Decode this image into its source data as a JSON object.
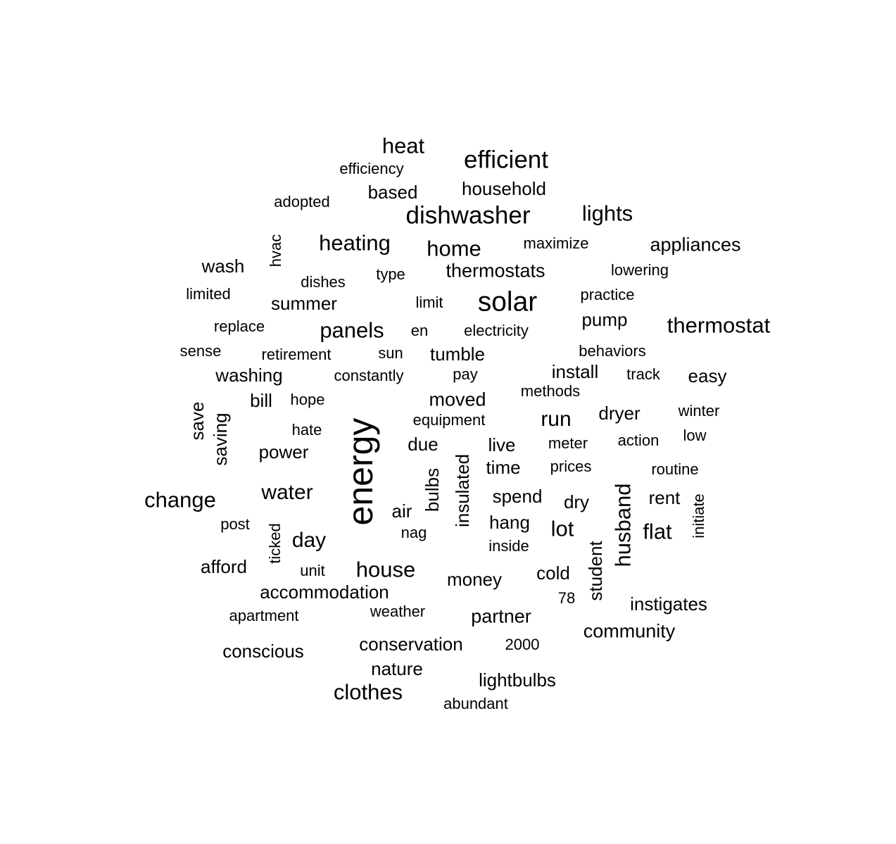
{
  "word_cloud": {
    "text_color": "#000000",
    "background": "#ffffff",
    "words": [
      {
        "text": "heat",
        "v": false
      },
      {
        "text": "efficient",
        "v": false
      },
      {
        "text": "efficiency",
        "v": false
      },
      {
        "text": "based",
        "v": false
      },
      {
        "text": "household",
        "v": false
      },
      {
        "text": "adopted",
        "v": false
      },
      {
        "text": "dishwasher",
        "v": false
      },
      {
        "text": "lights",
        "v": false
      },
      {
        "text": "hvac",
        "v": true
      },
      {
        "text": "heating",
        "v": false
      },
      {
        "text": "home",
        "v": false
      },
      {
        "text": "maximize",
        "v": false
      },
      {
        "text": "appliances",
        "v": false
      },
      {
        "text": "wash",
        "v": false
      },
      {
        "text": "type",
        "v": false
      },
      {
        "text": "thermostats",
        "v": false
      },
      {
        "text": "lowering",
        "v": false
      },
      {
        "text": "dishes",
        "v": false
      },
      {
        "text": "limited",
        "v": false
      },
      {
        "text": "summer",
        "v": false
      },
      {
        "text": "limit",
        "v": false
      },
      {
        "text": "solar",
        "v": false
      },
      {
        "text": "practice",
        "v": false
      },
      {
        "text": "replace",
        "v": false
      },
      {
        "text": "panels",
        "v": false
      },
      {
        "text": "en",
        "v": false
      },
      {
        "text": "electricity",
        "v": false
      },
      {
        "text": "pump",
        "v": false
      },
      {
        "text": "thermostat",
        "v": false
      },
      {
        "text": "sense",
        "v": false
      },
      {
        "text": "retirement",
        "v": false
      },
      {
        "text": "sun",
        "v": false
      },
      {
        "text": "tumble",
        "v": false
      },
      {
        "text": "behaviors",
        "v": false
      },
      {
        "text": "washing",
        "v": false
      },
      {
        "text": "constantly",
        "v": false
      },
      {
        "text": "pay",
        "v": false
      },
      {
        "text": "install",
        "v": false
      },
      {
        "text": "track",
        "v": false
      },
      {
        "text": "easy",
        "v": false
      },
      {
        "text": "methods",
        "v": false
      },
      {
        "text": "bill",
        "v": false
      },
      {
        "text": "hope",
        "v": false
      },
      {
        "text": "moved",
        "v": false
      },
      {
        "text": "save",
        "v": true
      },
      {
        "text": "saving",
        "v": true
      },
      {
        "text": "equipment",
        "v": false
      },
      {
        "text": "run",
        "v": false
      },
      {
        "text": "dryer",
        "v": false
      },
      {
        "text": "winter",
        "v": false
      },
      {
        "text": "hate",
        "v": false
      },
      {
        "text": "energy",
        "v": true
      },
      {
        "text": "due",
        "v": false
      },
      {
        "text": "live",
        "v": false
      },
      {
        "text": "meter",
        "v": false
      },
      {
        "text": "action",
        "v": false
      },
      {
        "text": "low",
        "v": false
      },
      {
        "text": "power",
        "v": false
      },
      {
        "text": "insulated",
        "v": true
      },
      {
        "text": "time",
        "v": false
      },
      {
        "text": "prices",
        "v": false
      },
      {
        "text": "routine",
        "v": false
      },
      {
        "text": "bulbs",
        "v": true
      },
      {
        "text": "change",
        "v": false
      },
      {
        "text": "water",
        "v": false
      },
      {
        "text": "spend",
        "v": false
      },
      {
        "text": "husband",
        "v": true
      },
      {
        "text": "rent",
        "v": false
      },
      {
        "text": "dry",
        "v": false
      },
      {
        "text": "initiate",
        "v": true
      },
      {
        "text": "air",
        "v": false
      },
      {
        "text": "post",
        "v": false
      },
      {
        "text": "hang",
        "v": false
      },
      {
        "text": "lot",
        "v": false
      },
      {
        "text": "flat",
        "v": false
      },
      {
        "text": "ticked",
        "v": true
      },
      {
        "text": "nag",
        "v": false
      },
      {
        "text": "day",
        "v": false
      },
      {
        "text": "inside",
        "v": false
      },
      {
        "text": "student",
        "v": true
      },
      {
        "text": "afford",
        "v": false
      },
      {
        "text": "unit",
        "v": false
      },
      {
        "text": "house",
        "v": false
      },
      {
        "text": "cold",
        "v": false
      },
      {
        "text": "money",
        "v": false
      },
      {
        "text": "accommodation",
        "v": false
      },
      {
        "text": "78",
        "v": false
      },
      {
        "text": "instigates",
        "v": false
      },
      {
        "text": "apartment",
        "v": false
      },
      {
        "text": "weather",
        "v": false
      },
      {
        "text": "partner",
        "v": false
      },
      {
        "text": "community",
        "v": false
      },
      {
        "text": "conscious",
        "v": false
      },
      {
        "text": "conservation",
        "v": false
      },
      {
        "text": "2000",
        "v": false
      },
      {
        "text": "nature",
        "v": false
      },
      {
        "text": "lightbulbs",
        "v": false
      },
      {
        "text": "clothes",
        "v": false
      },
      {
        "text": "abundant",
        "v": false
      }
    ]
  }
}
